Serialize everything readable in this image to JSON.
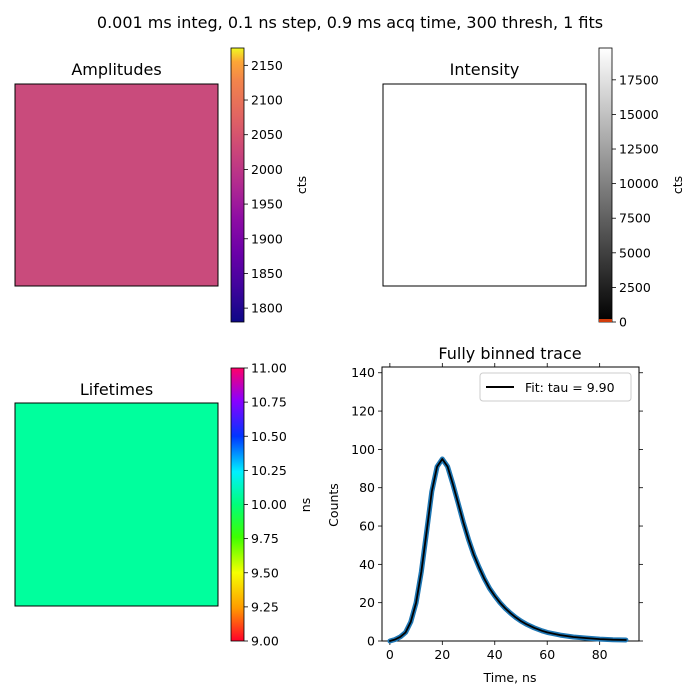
{
  "figure": {
    "suptitle": "0.001 ms integ, 0.1 ns step, 0.9 ms acq time, 300 thresh, 1 fits"
  },
  "colors": {
    "amplitude_fill": "#c94b7c",
    "lifetime_fill": "#00ff9d",
    "fit_line": "#000000",
    "data_line": "#1f77b4"
  },
  "chart_data": [
    {
      "type": "heatmap",
      "title": "Amplitudes",
      "value": 1980,
      "colorbar": {
        "label": "cts",
        "range": [
          1780,
          2175
        ],
        "ticks": [
          1800,
          1850,
          1900,
          1950,
          2000,
          2050,
          2100,
          2150
        ],
        "colormap": "plasma"
      }
    },
    {
      "type": "heatmap",
      "title": "Intensity",
      "value": 19800,
      "colorbar": {
        "label": "cts",
        "range": [
          0,
          19800
        ],
        "ticks": [
          0,
          2500,
          5000,
          7500,
          10000,
          12500,
          15000,
          17500
        ],
        "colormap": "gray"
      }
    },
    {
      "type": "heatmap",
      "title": "Lifetimes",
      "value": 9.9,
      "colorbar": {
        "label": "ns",
        "range": [
          9.0,
          11.0
        ],
        "ticks": [
          "9.00",
          "9.25",
          "9.50",
          "9.75",
          "10.00",
          "10.25",
          "10.50",
          "10.75",
          "11.00"
        ],
        "colormap": "gist_rainbow"
      }
    },
    {
      "type": "line",
      "title": "Fully binned trace",
      "xlabel": "Time, ns",
      "ylabel": "Counts",
      "xlim": [
        -3,
        95
      ],
      "ylim": [
        0,
        143
      ],
      "xticks": [
        0,
        20,
        40,
        60,
        80
      ],
      "yticks": [
        0,
        20,
        40,
        60,
        80,
        100,
        120,
        140
      ],
      "legend": {
        "position": "top-right",
        "entries": [
          "Fit: tau = 9.90"
        ]
      },
      "series": [
        {
          "role": "data",
          "x": [
            0,
            2,
            4,
            6,
            8,
            10,
            12,
            14,
            16,
            18,
            20,
            22,
            24,
            26,
            28,
            30,
            32,
            34,
            36,
            38,
            40,
            42,
            44,
            46,
            48,
            50,
            52,
            55,
            58,
            60,
            65,
            70,
            75,
            80,
            85,
            90
          ],
          "y": [
            0,
            0.8,
            2.2,
            4.5,
            10,
            20,
            36,
            57,
            78,
            91,
            95,
            91,
            82,
            72,
            62,
            53,
            45,
            38.5,
            32.5,
            27.5,
            23.5,
            20,
            17,
            14.5,
            12.3,
            10.4,
            8.8,
            6.9,
            5.3,
            4.5,
            3.1,
            2.1,
            1.5,
            1.0,
            0.7,
            0.5
          ]
        },
        {
          "role": "fit",
          "name": "Fit: tau = 9.90",
          "x": [
            0,
            2,
            4,
            6,
            8,
            10,
            12,
            14,
            16,
            18,
            20,
            22,
            24,
            26,
            28,
            30,
            32,
            34,
            36,
            38,
            40,
            42,
            44,
            46,
            48,
            50,
            52,
            55,
            58,
            60,
            65,
            70,
            75,
            80,
            85,
            90
          ],
          "y": [
            0,
            0.8,
            2.2,
            4.5,
            10,
            20,
            36,
            57,
            78,
            91,
            95,
            91,
            82,
            72,
            62,
            53,
            45,
            38.5,
            32.5,
            27.5,
            23.5,
            20,
            17,
            14.5,
            12.3,
            10.4,
            8.8,
            6.9,
            5.3,
            4.5,
            3.1,
            2.1,
            1.5,
            1.0,
            0.7,
            0.5
          ]
        }
      ]
    }
  ]
}
